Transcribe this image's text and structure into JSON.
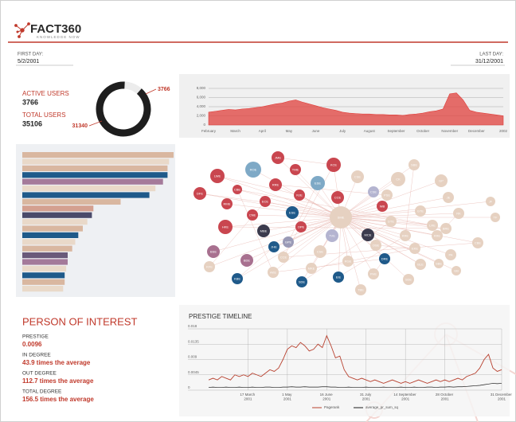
{
  "header": {
    "logo": "FACT360",
    "tagline": "KNOWLEDGE NOW"
  },
  "period": {
    "first_label": "FIRST DAY:",
    "first": "5/2/2001",
    "last_label": "LAST DAY:",
    "last": "31/12/2001"
  },
  "users": {
    "active_label": "ACTIVE USERS",
    "total_label": "TOTAL USERS",
    "total": "35106"
  },
  "person_of_interest": {
    "title": "PERSON OF INTEREST",
    "items": [
      {
        "label": "PRESTIGE",
        "value": "0.0096"
      },
      {
        "label": "IN DEGREE",
        "value": "43.9 times the average"
      },
      {
        "label": "OUT DEGREE",
        "value": "112.7 times the average"
      },
      {
        "label": "TOTAL DEGREE",
        "value": "156.5 times the average"
      }
    ]
  },
  "network": {
    "nodes": [
      {
        "label": "JME",
        "color": "#c9464f"
      },
      {
        "label": "ROE",
        "color": "#7ea9c6"
      },
      {
        "label": "TME",
        "color": "#c9464f"
      },
      {
        "label": "KCE",
        "color": "#c9464f"
      },
      {
        "label": "LWE",
        "color": "#c9464f"
      },
      {
        "label": "ESE",
        "color": "#7ea9c6"
      },
      {
        "label": "CBE",
        "color": "#c9464f"
      },
      {
        "label": "RRE",
        "color": "#c9464f"
      },
      {
        "label": "DFE",
        "color": "#c9464f"
      },
      {
        "label": "RJE",
        "color": "#c9464f"
      },
      {
        "label": "CCE",
        "color": "#c9464f"
      },
      {
        "label": "RME",
        "color": "#c9464f"
      },
      {
        "label": "ECE",
        "color": "#c9464f"
      },
      {
        "label": "CNE",
        "color": "#c9464f"
      },
      {
        "label": "ESE",
        "color": "#1f5a8a"
      },
      {
        "label": "HKE",
        "color": "#c9464f"
      },
      {
        "label": "MBE",
        "color": "#3b3b4d"
      },
      {
        "label": "OPE",
        "color": "#c9464f"
      },
      {
        "label": "GPE",
        "color": "#9a9ab6"
      },
      {
        "label": "TVE",
        "color": "#b4b4d0"
      },
      {
        "label": "MCE",
        "color": "#3b3b4d"
      },
      {
        "label": "JHE",
        "color": "#1f5a8a"
      },
      {
        "label": "BSE",
        "color": "#a8708f"
      },
      {
        "label": "BDE",
        "color": "#a8708f"
      },
      {
        "label": "CCE",
        "color": "#e6d1c1"
      },
      {
        "label": "KFE",
        "color": "#e6d1c1"
      },
      {
        "label": "KBE",
        "color": "#1f5a8a"
      },
      {
        "label": "AKE",
        "color": "#e6d1c1"
      },
      {
        "label": "SDE",
        "color": "#1f5a8a"
      },
      {
        "label": "EIE",
        "color": "#1f5a8a"
      },
      {
        "label": "DRE",
        "color": "#1f5a8a"
      },
      {
        "label": "CSE",
        "color": "#e6d1c1"
      },
      {
        "label": "CK",
        "color": "#e6d1c1"
      },
      {
        "label": "SBE",
        "color": "#e6d1c1"
      },
      {
        "label": "GP",
        "color": "#e6d1c1"
      },
      {
        "label": "CSE",
        "color": "#b4b4d0"
      },
      {
        "label": "PSE",
        "color": "#e6d1c1"
      },
      {
        "label": "WB",
        "color": "#c9464f"
      },
      {
        "label": "SME",
        "color": "#e6d1c1"
      },
      {
        "label": "DTE",
        "color": "#e6d1c1"
      },
      {
        "label": "GTE",
        "color": "#e6d1c1"
      },
      {
        "label": "JE",
        "color": "#e6d1c1"
      },
      {
        "label": "RK",
        "color": "#e6d1c1"
      },
      {
        "label": "JF",
        "color": "#e6d1c1"
      },
      {
        "label": "TF",
        "color": "#e6d1c1"
      },
      {
        "label": "LRE",
        "color": "#e6d1c1"
      },
      {
        "label": "BRE",
        "color": "#e6d1c1"
      },
      {
        "label": "CBE",
        "color": "#e6d1c1"
      },
      {
        "label": "KRE",
        "color": "#e6d1c1"
      },
      {
        "label": "KRE",
        "color": "#e6d1c1"
      },
      {
        "label": "OSE",
        "color": "#e6d1c1"
      },
      {
        "label": "EKE",
        "color": "#e6d1c1"
      },
      {
        "label": "PA",
        "color": "#e6d1c1"
      },
      {
        "label": "SBE",
        "color": "#e6d1c1"
      },
      {
        "label": "BLE",
        "color": "#e6d1c1"
      },
      {
        "label": "CSE",
        "color": "#e6d1c1"
      },
      {
        "label": "RGE",
        "color": "#e6d1c1"
      },
      {
        "label": "PHE",
        "color": "#e6d1c1"
      },
      {
        "label": "SDE",
        "color": "#e6d1c1"
      },
      {
        "label": "GB",
        "color": "#e6d1c1"
      },
      {
        "label": "MKE",
        "color": "#e6d1c1"
      },
      {
        "label": "TBE",
        "color": "#e6d1c1"
      }
    ]
  },
  "chart_data": [
    {
      "type": "donut",
      "values": [
        3766,
        31340
      ],
      "colors": [
        "#ececec",
        "#1e1e1e"
      ]
    },
    {
      "type": "area",
      "color": "#e0403c",
      "categories": [
        "February",
        null,
        null,
        null,
        "March",
        null,
        null,
        null,
        "April",
        null,
        null,
        null,
        "May",
        null,
        null,
        null,
        "June",
        null,
        null,
        null,
        "July",
        null,
        null,
        null,
        "August",
        null,
        null,
        null,
        "September",
        null,
        null,
        null,
        "October",
        null,
        null,
        null,
        "November",
        null,
        null,
        null,
        "December",
        null,
        null,
        null,
        "2002"
      ],
      "values": [
        2800,
        3000,
        3200,
        3400,
        3300,
        3500,
        3600,
        3800,
        4000,
        4300,
        4600,
        4800,
        5200,
        5500,
        5000,
        4600,
        4200,
        3800,
        3500,
        3200,
        2800,
        2600,
        2500,
        2400,
        2400,
        2300,
        2300,
        2200,
        2200,
        2100,
        2300,
        2400,
        2600,
        2900,
        3100,
        3500,
        6800,
        7000,
        5500,
        3200,
        2800,
        2600,
        2400,
        2200,
        2000
      ],
      "ylim": [
        0,
        8000
      ],
      "yticks": [
        {
          "value": 0,
          "label": "0"
        },
        {
          "value": 2000,
          "label": "2,000"
        },
        {
          "value": 4000,
          "label": "4,000"
        },
        {
          "value": 6000,
          "label": "6,000"
        },
        {
          "value": 8000,
          "label": "8,000"
        }
      ],
      "grid": true
    },
    {
      "type": "bar",
      "orientation": "horizontal",
      "xlim": [
        0,
        100
      ],
      "values": [
        100,
        97,
        96,
        96,
        93,
        88,
        84,
        65,
        47,
        46,
        43,
        40,
        37,
        35,
        33,
        30,
        30,
        29,
        28,
        28,
        27
      ],
      "colors": [
        "#d9b7a0",
        "#e9d9c9",
        "#d9b7a0",
        "#1f5a8a",
        "#a47a9a",
        "#e9d9c9",
        "#1f5a8a",
        "#d9b7a0",
        "#d4a090",
        "#4a4a6a",
        "#e9d9c9",
        "#d9b7a0",
        "#1f5a8a",
        "#e9d9c9",
        "#d9b7a0",
        "#6a5a7a",
        "#a47a9a",
        "#e9d9c9",
        "#1f5a8a",
        "#d9b7a0",
        "#e9d9c9"
      ]
    },
    {
      "type": "line",
      "title": "PRESTIGE TIMELINE",
      "categories": [
        null,
        null,
        null,
        null,
        null,
        null,
        null,
        null,
        null,
        "17 March 2001",
        null,
        null,
        null,
        null,
        null,
        null,
        null,
        null,
        "1 May 2001",
        null,
        null,
        null,
        null,
        null,
        null,
        null,
        null,
        "16 June 2001",
        null,
        null,
        null,
        null,
        null,
        null,
        null,
        null,
        "31 July 2001",
        null,
        null,
        null,
        null,
        null,
        null,
        null,
        null,
        "14 September 2001",
        null,
        null,
        null,
        null,
        null,
        null,
        null,
        null,
        "28 October 2001",
        null,
        null,
        null,
        null,
        null,
        null,
        null,
        null,
        null,
        null,
        null,
        null,
        "31 December 2001"
      ],
      "series": [
        {
          "name": "Pagerank",
          "color": "#b8412f",
          "values": [
            0.003,
            0.0035,
            0.003,
            0.004,
            0.0035,
            0.003,
            0.0045,
            0.004,
            0.0045,
            0.004,
            0.005,
            0.0045,
            0.004,
            0.005,
            0.006,
            0.0055,
            0.0065,
            0.009,
            0.012,
            0.013,
            0.0125,
            0.014,
            0.013,
            0.0115,
            0.012,
            0.0135,
            0.0125,
            0.016,
            0.013,
            0.0095,
            0.01,
            0.006,
            0.004,
            0.0035,
            0.003,
            0.0035,
            0.003,
            0.0025,
            0.003,
            0.0025,
            0.002,
            0.0025,
            0.003,
            0.0025,
            0.002,
            0.0025,
            0.002,
            0.0025,
            0.003,
            0.0025,
            0.002,
            0.0025,
            0.003,
            0.0025,
            0.003,
            0.0025,
            0.003,
            0.0035,
            0.003,
            0.004,
            0.0045,
            0.005,
            0.0065,
            0.009,
            0.0105,
            0.0065,
            0.0055,
            0.006
          ]
        },
        {
          "name": "average_pr_sum_sq",
          "color": "#1e1e1e",
          "values": [
            0.0008,
            0.0009,
            0.0008,
            0.0008,
            0.0009,
            0.0008,
            0.0008,
            0.0009,
            0.0008,
            0.0008,
            0.0009,
            0.0008,
            0.0008,
            0.0009,
            0.0009,
            0.0008,
            0.0008,
            0.0009,
            0.0009,
            0.001,
            0.0009,
            0.0009,
            0.001,
            0.0009,
            0.0009,
            0.0009,
            0.001,
            0.001,
            0.0009,
            0.0009,
            0.0008,
            0.0008,
            0.0009,
            0.0008,
            0.0008,
            0.0008,
            0.0009,
            0.0008,
            0.0008,
            0.0008,
            0.0009,
            0.0008,
            0.0008,
            0.0008,
            0.0009,
            0.0008,
            0.0008,
            0.0009,
            0.0008,
            0.0008,
            0.0009,
            0.0009,
            0.0008,
            0.0009,
            0.0009,
            0.001,
            0.0009,
            0.001,
            0.001,
            0.0011,
            0.0012,
            0.0013,
            0.0014,
            0.0016,
            0.0018,
            0.002,
            0.0019,
            0.002
          ]
        }
      ],
      "ylim": [
        0,
        0.018
      ],
      "yticks": [
        0,
        0.0045,
        0.009,
        0.0135,
        0.018
      ],
      "grid": true,
      "xgrid": true,
      "legend": "bottom"
    }
  ]
}
